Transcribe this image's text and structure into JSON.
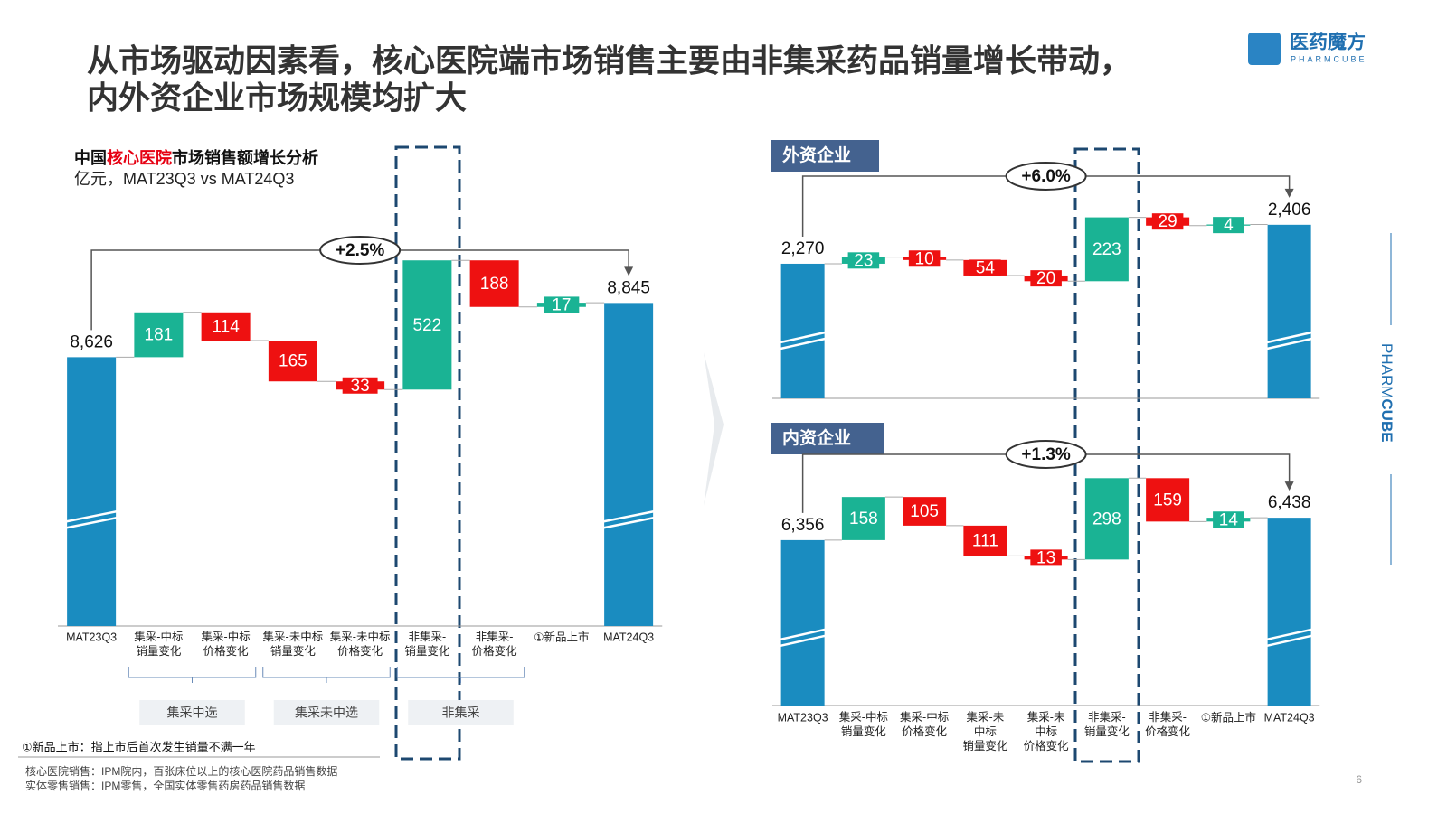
{
  "header": {
    "title": [
      "从市场驱动因素看，核心医院端市场销售主要由非集采药品销量增长带动，",
      "内外资企业市场规模均扩大"
    ],
    "logo": {
      "name": "医药魔方",
      "sub": "PHARMCUBE"
    },
    "side_brand": [
      "PHARM",
      "CUBE"
    ]
  },
  "chart_data": [
    {
      "type": "waterfall",
      "title_parts": [
        "中国",
        "核心医院",
        "市场销售额增长分析"
      ],
      "title_highlight_color": "#e60012",
      "subtitle": "亿元，MAT23Q3 vs MAT24Q3",
      "categories": [
        "MAT23Q3",
        "集采-中标\n销量变化",
        "集采-中标\n价格变化",
        "集采-未中标\n销量变化",
        "集采-未中标\n价格变化",
        "非集采-\n销量变化",
        "非集采-\n价格变化",
        "①新品上市",
        "MAT24Q3"
      ],
      "values": [
        8626,
        181,
        -114,
        -165,
        -33,
        522,
        -188,
        17,
        8845
      ],
      "value_labels": [
        "8,626",
        "181",
        "114",
        "165",
        "33",
        "522",
        "188",
        "17",
        "8,845"
      ],
      "category_groups": [
        "集采中选",
        "集采未中选",
        "非集采"
      ],
      "annotation": "+2.5%",
      "ylim": [
        7540,
        9120
      ],
      "axis_break": true,
      "total_color": "#1a8cc0",
      "increase_color": "#1ab394",
      "decrease_color": "#ee1111"
    },
    {
      "type": "waterfall",
      "title": "外资企业",
      "values": [
        2270,
        23,
        -10,
        -54,
        -20,
        223,
        -29,
        4,
        2406
      ],
      "value_labels": [
        "2,270",
        "23",
        "10",
        "54",
        "20",
        "223",
        "29",
        "4",
        "2,406"
      ],
      "annotation": "+6.0%",
      "ylim": [
        1800,
        2560
      ],
      "axis_break": true,
      "total_color": "#1a8cc0",
      "increase_color": "#1ab394",
      "decrease_color": "#ee1111"
    },
    {
      "type": "waterfall",
      "title": "内资企业",
      "categories": [
        "MAT23Q3",
        "集采-中标\n销量变化",
        "集采-中标\n价格变化",
        "集采-未\n中标\n销量变化",
        "集采-未\n中标\n价格变化",
        "非集采-\n销量变化",
        "非集采-\n价格变化",
        "①新品上市",
        "MAT24Q3"
      ],
      "values": [
        6356,
        158,
        -105,
        -111,
        -13,
        298,
        -159,
        14,
        6438
      ],
      "value_labels": [
        "6,356",
        "158",
        "105",
        "111",
        "13",
        "298",
        "159",
        "14",
        "6,438"
      ],
      "annotation": "+1.3%",
      "ylim": [
        5750,
        6680
      ],
      "axis_break": true,
      "total_color": "#1a8cc0",
      "increase_color": "#1ab394",
      "decrease_color": "#ee1111"
    }
  ],
  "footnotes": [
    "①新品上市：指上市后首次发生销量不满一年",
    "核心医院销售：IPM院内，百张床位以上的核心医院药品销售数据",
    "实体零售销售：IPM零售，全国实体零售药房药品销售数据"
  ],
  "page_number": 6
}
